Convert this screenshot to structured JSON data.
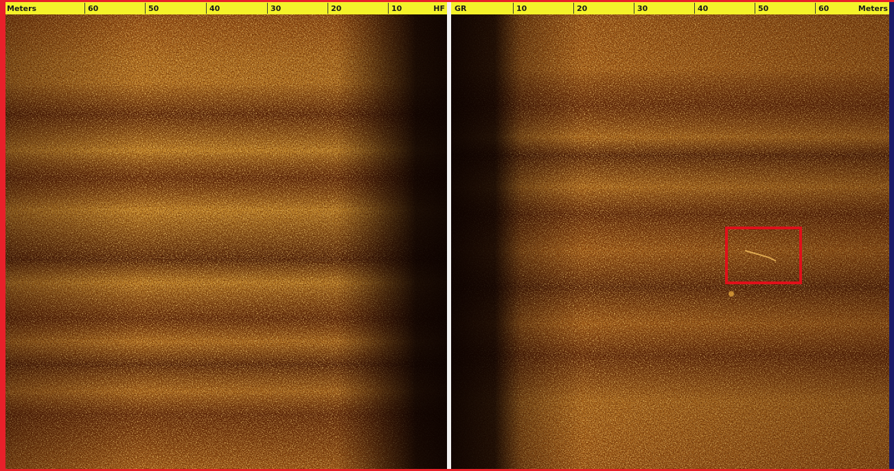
{
  "left_panel": {
    "ruler": [
      "Meters",
      60,
      50,
      40,
      30,
      20,
      10,
      "HF"
    ]
  },
  "right_panel": {
    "ruler": [
      "GR",
      10,
      20,
      30,
      40,
      50,
      60,
      "Meters"
    ]
  }
}
